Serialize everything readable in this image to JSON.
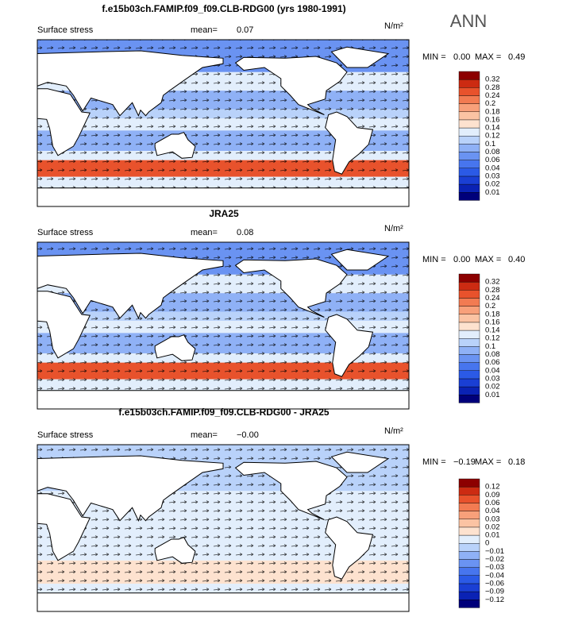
{
  "season": "ANN",
  "panels": [
    {
      "title": "f.e15b03ch.FAMIP.f09_f09.CLB-RDG00 (yrs 1980-1991)",
      "label": "Surface stress",
      "mean_label": "mean=",
      "mean": "0.07",
      "unit": "N/m²",
      "min_label": "MIN =",
      "min": "0.00",
      "max_label": "MAX =",
      "max": "0.49",
      "style": "full",
      "colorbar": {
        "labels": [
          "0.01",
          "0.02",
          "0.03",
          "0.04",
          "0.06",
          "0.08",
          "0.1",
          "0.12",
          "0.14",
          "0.16",
          "0.18",
          "0.2",
          "0.24",
          "0.28",
          "0.32"
        ],
        "colors": [
          "#00007a",
          "#0a22b4",
          "#1a3fd4",
          "#2b5ae6",
          "#4775ee",
          "#6a93f2",
          "#8fb1f6",
          "#b9d2fa",
          "#e2eefc",
          "#fde2cf",
          "#fbc3a3",
          "#f8a07a",
          "#f27b52",
          "#e8522c",
          "#cc2b12",
          "#8c0000"
        ]
      }
    },
    {
      "title": "JRA25",
      "label": "Surface stress",
      "mean_label": "mean=",
      "mean": "0.08",
      "unit": "N/m²",
      "min_label": "MIN =",
      "min": "0.00",
      "max_label": "MAX =",
      "max": "0.40",
      "style": "full",
      "colorbar": {
        "labels": [
          "0.01",
          "0.02",
          "0.03",
          "0.04",
          "0.06",
          "0.08",
          "0.1",
          "0.12",
          "0.14",
          "0.16",
          "0.18",
          "0.2",
          "0.24",
          "0.28",
          "0.32"
        ],
        "colors": [
          "#00007a",
          "#0a22b4",
          "#1a3fd4",
          "#2b5ae6",
          "#4775ee",
          "#6a93f2",
          "#8fb1f6",
          "#b9d2fa",
          "#e2eefc",
          "#fde2cf",
          "#fbc3a3",
          "#f8a07a",
          "#f27b52",
          "#e8522c",
          "#cc2b12",
          "#8c0000"
        ]
      }
    },
    {
      "title": "f.e15b03ch.FAMIP.f09_f09.CLB-RDG00 - JRA25",
      "label": "Surface stress",
      "mean_label": "mean=",
      "mean": "−0.00",
      "unit": "N/m²",
      "min_label": "MIN =",
      "min": "−0.19",
      "max_label": "MAX =",
      "max": "0.18",
      "style": "diff",
      "colorbar": {
        "labels": [
          "−0.12",
          "−0.09",
          "−0.06",
          "−0.04",
          "−0.03",
          "−0.02",
          "−0.01",
          "0",
          "0.01",
          "0.02",
          "0.03",
          "0.04",
          "0.06",
          "0.09",
          "0.12"
        ],
        "colors": [
          "#00007a",
          "#0a22b4",
          "#1a3fd4",
          "#2b5ae6",
          "#4775ee",
          "#6a93f2",
          "#8fb1f6",
          "#b9d2fa",
          "#e2eefc",
          "#fde2cf",
          "#fbc3a3",
          "#f8a07a",
          "#f27b52",
          "#e8522c",
          "#cc2b12",
          "#8c0000"
        ]
      }
    }
  ]
}
